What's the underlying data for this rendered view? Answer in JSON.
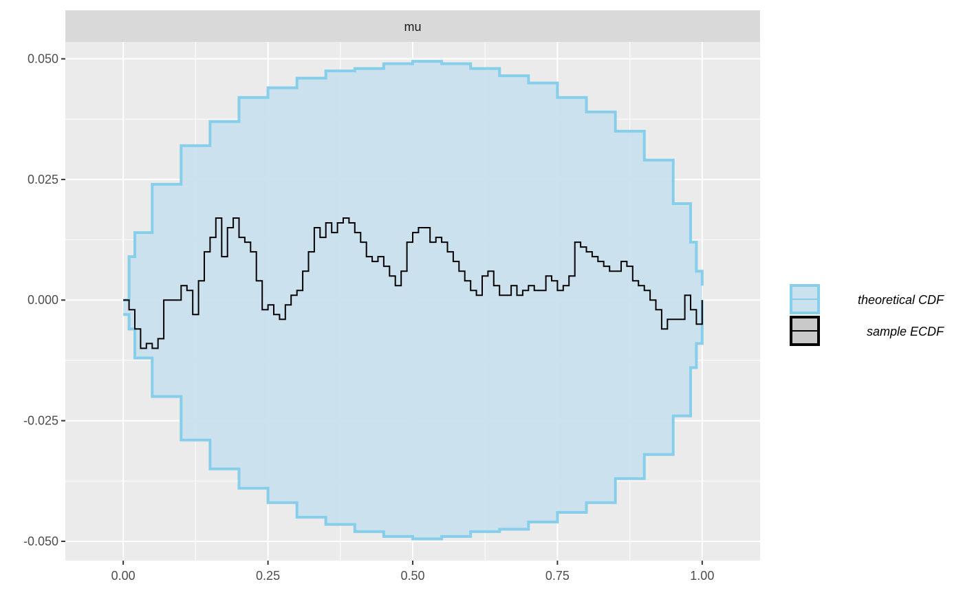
{
  "chart_data": {
    "type": "line",
    "facet_label": "mu",
    "title": "",
    "xlabel": "",
    "ylabel": "",
    "xlim": [
      -0.1,
      1.1
    ],
    "ylim": [
      -0.054,
      0.0535
    ],
    "x_ticks": [
      0.0,
      0.25,
      0.5,
      0.75,
      1.0
    ],
    "x_tick_labels": [
      "0.00",
      "0.25",
      "0.50",
      "0.75",
      "1.00"
    ],
    "y_ticks": [
      0.05,
      0.025,
      0.0,
      -0.025,
      -0.05
    ],
    "y_tick_labels": [
      "0.050",
      "0.025",
      "0.000",
      "-0.025",
      "-0.050"
    ],
    "grid": true,
    "legend_position": "right",
    "legend": [
      {
        "label": "theoretical CDF",
        "kind": "band"
      },
      {
        "label": "sample ECDF",
        "kind": "line"
      }
    ],
    "band": {
      "name": "theoretical CDF",
      "x": [
        0.0,
        0.01,
        0.02,
        0.05,
        0.1,
        0.15,
        0.2,
        0.25,
        0.3,
        0.35,
        0.4,
        0.45,
        0.5,
        0.55,
        0.6,
        0.65,
        0.7,
        0.75,
        0.8,
        0.85,
        0.9,
        0.95,
        0.98,
        0.99,
        1.0
      ],
      "upper": [
        0.0,
        0.009,
        0.014,
        0.024,
        0.032,
        0.037,
        0.042,
        0.044,
        0.046,
        0.0475,
        0.048,
        0.049,
        0.0495,
        0.049,
        0.048,
        0.0465,
        0.045,
        0.042,
        0.039,
        0.035,
        0.029,
        0.02,
        0.012,
        0.006,
        0.003
      ],
      "lower": [
        -0.003,
        -0.006,
        -0.012,
        -0.02,
        -0.029,
        -0.035,
        -0.039,
        -0.042,
        -0.045,
        -0.0465,
        -0.048,
        -0.049,
        -0.0495,
        -0.049,
        -0.048,
        -0.0475,
        -0.046,
        -0.044,
        -0.042,
        -0.037,
        -0.032,
        -0.024,
        -0.014,
        -0.009,
        0.0
      ],
      "fill": "#c9e2ee",
      "stroke": "#87ceeb"
    },
    "series": [
      {
        "name": "sample ECDF",
        "color": "#000000",
        "x": [
          0.0,
          0.005,
          0.01,
          0.02,
          0.03,
          0.04,
          0.05,
          0.06,
          0.07,
          0.08,
          0.09,
          0.1,
          0.11,
          0.12,
          0.13,
          0.14,
          0.15,
          0.16,
          0.17,
          0.18,
          0.19,
          0.2,
          0.21,
          0.22,
          0.23,
          0.24,
          0.25,
          0.26,
          0.27,
          0.28,
          0.29,
          0.3,
          0.31,
          0.32,
          0.33,
          0.34,
          0.35,
          0.36,
          0.37,
          0.38,
          0.39,
          0.4,
          0.41,
          0.42,
          0.43,
          0.44,
          0.45,
          0.46,
          0.47,
          0.48,
          0.49,
          0.5,
          0.51,
          0.52,
          0.53,
          0.54,
          0.55,
          0.56,
          0.57,
          0.58,
          0.59,
          0.6,
          0.61,
          0.62,
          0.63,
          0.64,
          0.65,
          0.66,
          0.67,
          0.68,
          0.69,
          0.7,
          0.71,
          0.72,
          0.73,
          0.74,
          0.75,
          0.76,
          0.77,
          0.78,
          0.79,
          0.8,
          0.81,
          0.82,
          0.83,
          0.84,
          0.85,
          0.86,
          0.87,
          0.88,
          0.89,
          0.9,
          0.91,
          0.92,
          0.93,
          0.94,
          0.95,
          0.96,
          0.97,
          0.98,
          0.99,
          1.0
        ],
        "y": [
          0.0,
          0.0,
          -0.002,
          -0.006,
          -0.01,
          -0.009,
          -0.01,
          -0.008,
          0.0,
          0.0,
          0.0,
          0.003,
          0.002,
          -0.003,
          0.004,
          0.01,
          0.013,
          0.017,
          0.009,
          0.015,
          0.017,
          0.013,
          0.012,
          0.01,
          0.004,
          -0.002,
          -0.001,
          -0.003,
          -0.004,
          -0.001,
          0.001,
          0.002,
          0.006,
          0.01,
          0.015,
          0.013,
          0.016,
          0.014,
          0.016,
          0.017,
          0.016,
          0.014,
          0.012,
          0.009,
          0.008,
          0.009,
          0.007,
          0.005,
          0.003,
          0.006,
          0.012,
          0.014,
          0.015,
          0.015,
          0.012,
          0.013,
          0.012,
          0.01,
          0.008,
          0.006,
          0.004,
          0.002,
          0.001,
          0.005,
          0.006,
          0.003,
          0.001,
          0.001,
          0.003,
          0.001,
          0.002,
          0.003,
          0.002,
          0.002,
          0.005,
          0.004,
          0.002,
          0.003,
          0.005,
          0.012,
          0.011,
          0.01,
          0.009,
          0.008,
          0.007,
          0.006,
          0.006,
          0.008,
          0.007,
          0.004,
          0.003,
          0.002,
          0.0,
          -0.002,
          -0.006,
          -0.004,
          -0.004,
          -0.004,
          0.001,
          -0.002,
          -0.005,
          0.0
        ]
      }
    ]
  }
}
